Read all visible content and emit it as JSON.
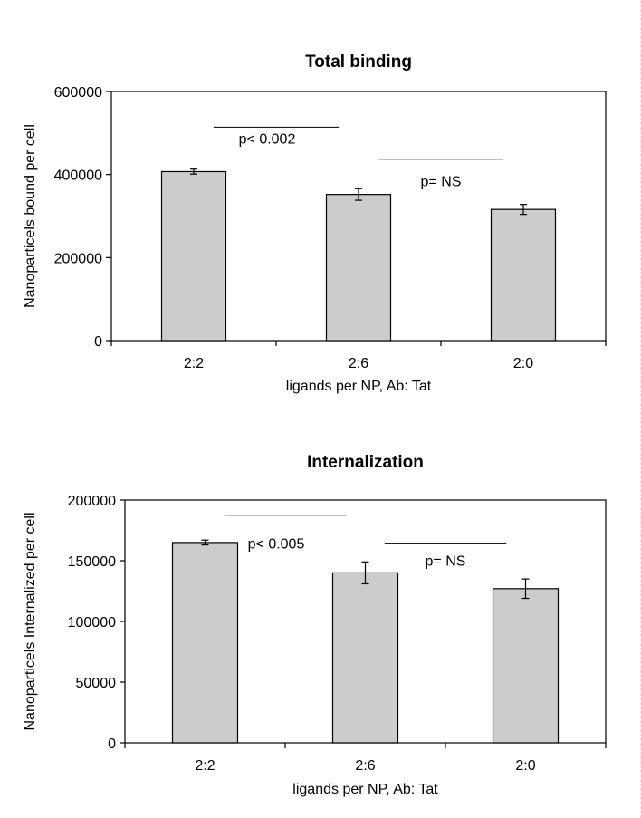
{
  "chart_data": [
    {
      "type": "bar",
      "title": "Total binding",
      "xlabel": "ligands per NP, Ab: Tat",
      "ylabel": "Nanoparticels bound per cell",
      "categories": [
        "2:2",
        "2:6",
        "2:0"
      ],
      "values": [
        407000,
        352000,
        316000
      ],
      "errors": [
        6000,
        14000,
        12000
      ],
      "ylim": [
        0,
        600000
      ],
      "yticks": [
        0,
        200000,
        400000,
        600000
      ],
      "ytick_labels": [
        "0",
        "200000",
        "400000",
        "600000"
      ],
      "grid": false,
      "bar_color": "#cccccc",
      "annotations": [
        {
          "text": "p< 0.002",
          "from": 0,
          "to": 1,
          "line_y": 514000,
          "text_y": 475000
        },
        {
          "text": "p= NS",
          "from": 1,
          "to": 2,
          "line_y": 437000,
          "text_y": 372000
        }
      ]
    },
    {
      "type": "bar",
      "title": "Internalization",
      "xlabel": "ligands per NP, Ab: Tat",
      "ylabel": "Nanoparticels Internalized per cell",
      "categories": [
        "2:2",
        "2:6",
        "2:0"
      ],
      "values": [
        165000,
        140000,
        127000
      ],
      "errors": [
        2000,
        9000,
        8000
      ],
      "ylim": [
        0,
        200000
      ],
      "yticks": [
        0,
        50000,
        100000,
        150000,
        200000
      ],
      "ytick_labels": [
        "0",
        "50000",
        "100000",
        "150000",
        "200000"
      ],
      "grid": false,
      "bar_color": "#cccccc",
      "annotations": [
        {
          "text": "p< 0.005",
          "from": 0,
          "to": 1,
          "line_y": 187500,
          "text_y": 160000
        },
        {
          "text": "p= NS",
          "from": 1,
          "to": 2,
          "line_y": 164500,
          "text_y": 146000
        }
      ]
    }
  ]
}
